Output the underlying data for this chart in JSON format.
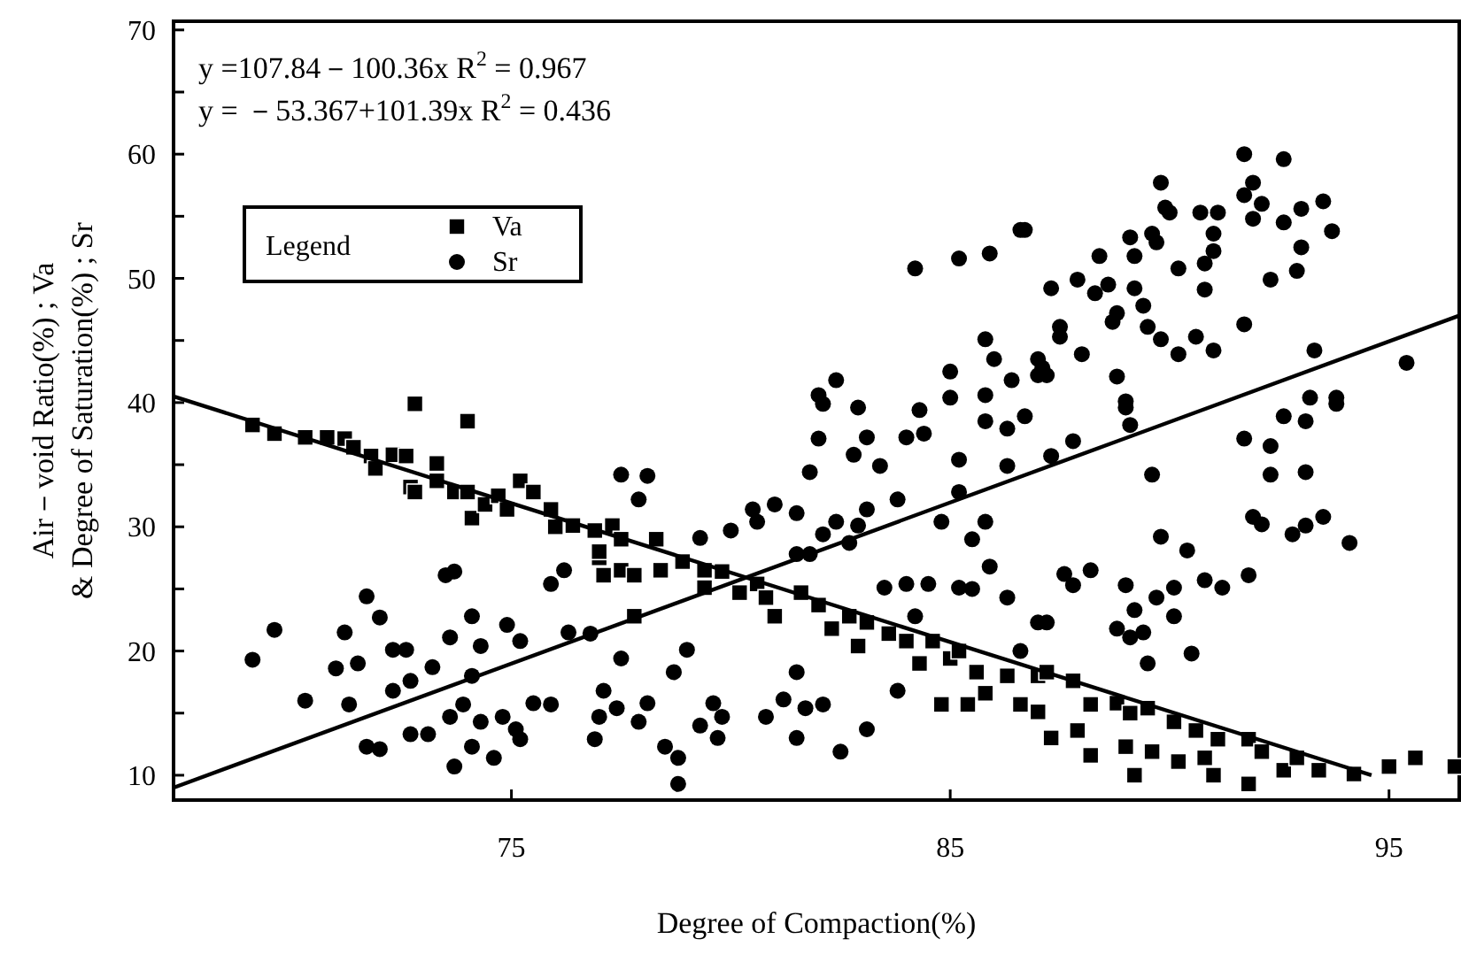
{
  "chart_data": {
    "type": "scatter",
    "xlabel": "Degree of Compaction(%)",
    "ylabel": "Air－void Ratio(%) ; Va\n& Degree of Saturation(%) ; Sr",
    "legend_title": "Legend",
    "legend": "top left",
    "annotations": [
      "y =107.84－100.36x    R$^{2}$ = 0.967",
      "y = －53.367+101.39x    R$^{2}$ = 0.436"
    ],
    "xlim": [
      67.3,
      96.6
    ],
    "ylim": [
      8.0,
      70.7
    ],
    "xticks": [
      75,
      85,
      95
    ],
    "yticks": [
      10,
      {
        "value": 15,
        "label": null
      },
      20,
      {
        "value": 25,
        "label": null
      },
      30,
      {
        "value": 35,
        "label": null
      },
      40,
      {
        "value": 45,
        "label": null
      },
      50,
      {
        "value": 55,
        "label": null
      },
      60,
      {
        "value": 65,
        "label": null
      },
      70
    ],
    "series": [
      {
        "name": "Va",
        "color": "#000000",
        "marker": "square",
        "x": [
          69.1,
          69.6,
          70.3,
          70.8,
          71.2,
          71.4,
          71.8,
          71.9,
          72.3,
          72.6,
          72.7,
          72.8,
          73.3,
          73.3,
          73.7,
          74.0,
          74.1,
          74.4,
          74.7,
          74.9,
          75.2,
          75.5,
          75.9,
          76.0,
          76.4,
          76.9,
          77.0,
          77.1,
          72.8,
          74.0,
          77.3,
          77.5,
          77.5,
          77.8,
          78.3,
          78.4,
          78.9,
          79.4,
          79.4,
          79.8,
          80.2,
          80.6,
          80.8,
          81.0,
          81.6,
          82.0,
          82.3,
          82.7,
          82.9,
          83.1,
          83.6,
          84.0,
          84.6,
          84.3,
          85.0,
          85.2,
          85.6,
          86.3,
          85.8,
          86.6,
          87.0,
          85.4,
          84.8,
          77.0,
          77.8,
          87.2,
          87.0,
          87.8,
          88.2,
          87.3,
          87.9,
          88.8,
          89.1,
          89.5,
          90.1,
          90.6,
          89.0,
          88.2,
          89.6,
          90.2,
          90.8,
          91.1,
          91.8,
          92.1,
          92.6,
          92.9,
          93.4,
          94.2,
          89.2,
          91.0,
          91.8,
          95.0,
          95.6,
          96.5
        ],
        "values": [
          38.2,
          37.5,
          37.2,
          37.2,
          37.1,
          36.4,
          35.7,
          34.7,
          35.8,
          35.7,
          33.2,
          32.8,
          35.1,
          33.7,
          32.8,
          32.8,
          30.7,
          31.8,
          32.5,
          31.4,
          33.7,
          32.8,
          31.4,
          30.0,
          30.1,
          29.7,
          27.5,
          26.1,
          39.9,
          38.5,
          30.1,
          29.0,
          26.5,
          26.1,
          29.0,
          26.5,
          27.2,
          26.5,
          25.1,
          26.4,
          24.7,
          25.4,
          24.3,
          22.8,
          24.7,
          23.7,
          21.8,
          22.8,
          20.4,
          22.3,
          21.4,
          20.8,
          20.8,
          19.0,
          19.4,
          20.0,
          18.3,
          18.0,
          16.6,
          15.7,
          18.0,
          15.7,
          15.7,
          28.0,
          22.8,
          18.3,
          15.1,
          17.6,
          15.7,
          13.0,
          13.6,
          15.8,
          15.0,
          15.4,
          14.3,
          13.6,
          12.3,
          11.6,
          11.9,
          11.1,
          11.4,
          12.9,
          12.9,
          11.9,
          10.4,
          11.4,
          10.4,
          10.1,
          10.0,
          10.0,
          9.3,
          10.7,
          11.4,
          10.7
        ]
      },
      {
        "name": "Sr",
        "color": "#000000",
        "marker": "circle",
        "x": [
          69.1,
          69.6,
          70.3,
          71.3,
          71.7,
          72.0,
          71.2,
          71.0,
          71.5,
          72.3,
          72.6,
          72.3,
          72.7,
          73.2,
          73.5,
          73.7,
          73.6,
          74.1,
          74.3,
          74.1,
          73.9,
          74.3,
          73.6,
          73.1,
          72.7,
          71.7,
          72.0,
          73.7,
          74.1,
          74.6,
          74.8,
          75.1,
          75.2,
          75.5,
          75.9,
          74.9,
          75.2,
          76.3,
          75.9,
          76.2,
          76.8,
          77.0,
          76.9,
          91.7,
          92.6,
          89.8,
          89.9,
          90.0,
          90.7,
          91.1,
          91.9,
          91.7,
          92.1,
          91.9,
          93.0,
          93.5,
          92.6,
          93.7,
          93.0,
          92.9,
          92.3,
          91.0,
          91.0,
          90.8,
          90.2,
          90.8,
          91.7,
          90.6,
          91.0,
          93.3,
          95.4,
          89.6,
          89.7,
          89.1,
          89.2,
          88.4,
          87.9,
          88.6,
          88.3,
          89.2,
          89.4,
          88.8,
          88.7,
          87.5,
          87.5,
          87.3,
          89.5,
          89.8,
          90.2,
          88.0,
          88.8,
          87.1,
          87.0,
          87.2,
          89.0,
          93.2,
          93.8,
          86.7,
          89.0,
          89.1,
          87.8,
          87.3,
          92.6,
          93.1,
          93.8,
          91.7,
          92.3,
          89.6,
          92.3,
          93.1,
          91.9,
          92.1,
          92.8,
          93.1,
          93.5,
          94.1,
          89.8,
          90.4,
          87.6,
          87.8,
          88.2,
          89.0,
          89.7,
          90.1,
          90.8,
          91.2,
          91.8,
          89.2,
          90.1,
          88.8,
          89.1,
          89.4,
          87.2,
          89.5,
          90.5,
          77.5,
          78.1,
          77.9,
          77.5,
          77.1,
          77.4,
          78.1,
          77.9,
          78.7,
          79.0,
          79.6,
          79.8,
          79.3,
          78.5,
          78.8,
          79.7,
          80.8,
          81.2,
          81.7,
          82.1,
          81.5,
          82.5,
          83.1,
          81.5,
          78.8,
          82.1,
          82.9,
          84.3,
          85.0,
          82.0,
          83.1,
          84.0,
          84.4,
          85.8,
          86.3,
          86.7,
          82.8,
          83.4,
          81.8,
          85.2,
          86.3,
          83.8,
          83.1,
          82.4,
          82.9,
          82.1,
          82.7,
          81.0,
          81.5,
          80.5,
          80.0,
          80.6,
          79.3,
          81.5,
          81.8,
          84.8,
          85.2,
          85.5,
          85.8,
          85.9,
          86.3,
          85.2,
          85.5,
          84.5,
          84.0,
          83.5,
          84.2,
          86.6,
          87.0,
          83.8,
          84.2,
          85.2,
          85.9,
          86.6,
          85.8,
          85.0,
          86.0,
          86.4,
          87.0,
          82.0,
          82.4,
          85.8
        ],
        "values": [
          19.3,
          21.7,
          16.0,
          15.7,
          24.4,
          22.7,
          21.5,
          18.6,
          19.0,
          20.1,
          20.1,
          16.8,
          17.6,
          18.7,
          26.1,
          26.4,
          21.1,
          22.8,
          20.4,
          18.0,
          15.7,
          14.3,
          14.7,
          13.3,
          13.3,
          12.3,
          12.1,
          10.7,
          12.3,
          11.4,
          14.7,
          13.7,
          12.9,
          15.8,
          15.7,
          22.1,
          20.8,
          21.5,
          25.4,
          26.5,
          21.4,
          14.7,
          12.9,
          60.0,
          59.6,
          57.7,
          55.7,
          55.3,
          55.3,
          55.3,
          57.7,
          56.7,
          56.0,
          54.8,
          55.6,
          56.2,
          54.5,
          53.8,
          52.5,
          50.6,
          49.9,
          53.6,
          52.2,
          51.2,
          50.8,
          49.1,
          46.3,
          45.3,
          44.2,
          44.2,
          43.2,
          53.6,
          52.9,
          53.3,
          51.8,
          51.8,
          49.9,
          49.5,
          48.8,
          49.2,
          47.8,
          47.2,
          46.5,
          46.1,
          45.3,
          49.2,
          46.1,
          45.1,
          43.9,
          43.9,
          42.1,
          42.8,
          42.2,
          42.2,
          40.1,
          40.4,
          40.4,
          53.9,
          39.6,
          38.2,
          36.9,
          35.7,
          38.9,
          38.5,
          39.9,
          37.1,
          36.5,
          34.2,
          34.2,
          34.4,
          30.8,
          30.2,
          29.4,
          30.1,
          30.8,
          28.7,
          29.2,
          28.1,
          26.2,
          25.3,
          26.5,
          25.3,
          24.3,
          25.1,
          25.7,
          25.1,
          26.1,
          23.3,
          22.8,
          21.8,
          21.1,
          21.5,
          22.3,
          19.0,
          19.8,
          34.2,
          34.1,
          32.2,
          19.4,
          16.8,
          15.4,
          15.8,
          14.3,
          18.3,
          20.1,
          15.8,
          14.7,
          14.0,
          12.3,
          11.4,
          13.0,
          14.7,
          16.1,
          15.4,
          15.7,
          13.0,
          11.9,
          13.7,
          18.3,
          9.3,
          39.9,
          39.6,
          39.4,
          40.4,
          37.1,
          37.2,
          37.2,
          37.5,
          38.5,
          37.9,
          38.9,
          35.8,
          34.9,
          34.4,
          35.4,
          34.9,
          32.2,
          31.4,
          30.4,
          30.1,
          29.4,
          28.7,
          31.8,
          31.1,
          31.4,
          29.7,
          30.4,
          29.1,
          27.8,
          27.8,
          30.4,
          32.8,
          29.0,
          30.4,
          26.8,
          24.3,
          25.1,
          25.0,
          25.4,
          25.4,
          25.1,
          22.8,
          20.0,
          22.3,
          16.8,
          50.8,
          51.6,
          52.0,
          53.9,
          45.1,
          42.5,
          43.5,
          41.8,
          43.5,
          40.6,
          41.8,
          40.6
        ]
      },
      {
        "type": "line",
        "color": "#000000",
        "marker": "none",
        "line_style": "solid",
        "x": [
          67.3,
          94.6
        ],
        "values": [
          40.5,
          10.0
        ]
      },
      {
        "type": "line",
        "color": "#000000",
        "marker": "none",
        "line_style": "solid",
        "x": [
          67.3,
          96.6
        ],
        "values": [
          9.0,
          47.0
        ]
      }
    ]
  }
}
